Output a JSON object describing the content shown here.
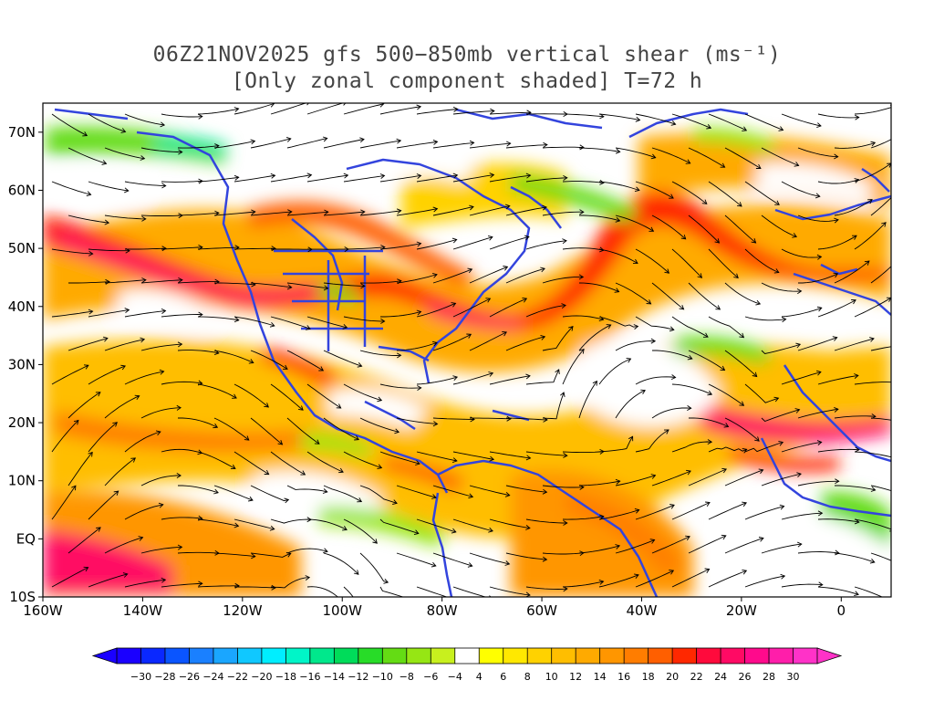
{
  "title": {
    "line1": "06Z21NOV2025 gfs 500−850mb vertical shear (ms⁻¹)",
    "line2": "[Only zonal component shaded] T=72 h"
  },
  "map": {
    "lon_range": [
      -160,
      10
    ],
    "lat_range": [
      -10,
      75
    ],
    "lat_labels": [
      {
        "lat": 70,
        "text": "70N"
      },
      {
        "lat": 60,
        "text": "60N"
      },
      {
        "lat": 50,
        "text": "50N"
      },
      {
        "lat": 40,
        "text": "40N"
      },
      {
        "lat": 30,
        "text": "30N"
      },
      {
        "lat": 20,
        "text": "20N"
      },
      {
        "lat": 10,
        "text": "10N"
      },
      {
        "lat": 0,
        "text": "EQ"
      },
      {
        "lat": -10,
        "text": "10S"
      }
    ],
    "lon_labels": [
      {
        "lon": -160,
        "text": "160W"
      },
      {
        "lon": -140,
        "text": "140W"
      },
      {
        "lon": -120,
        "text": "120W"
      },
      {
        "lon": -100,
        "text": "100W"
      },
      {
        "lon": -80,
        "text": "80W"
      },
      {
        "lon": -60,
        "text": "60W"
      },
      {
        "lon": -40,
        "text": "40W"
      },
      {
        "lon": -20,
        "text": "20W"
      },
      {
        "lon": 0,
        "text": "0"
      }
    ],
    "coastline_color": "#3344dd",
    "streamline_color": "#000000"
  },
  "colorbar": {
    "labels": [
      "−30",
      "−28",
      "−26",
      "−24",
      "−22",
      "−20",
      "−18",
      "−16",
      "−14",
      "−12",
      "−10",
      "−8",
      "−6",
      "−4",
      "4",
      "6",
      "8",
      "10",
      "12",
      "14",
      "16",
      "18",
      "20",
      "22",
      "24",
      "26",
      "28",
      "30"
    ],
    "colors": [
      "#1a00ff",
      "#0a28ff",
      "#0a55ff",
      "#1a80ff",
      "#1aa6ff",
      "#10c8ff",
      "#00eeff",
      "#00f5c8",
      "#00e88c",
      "#00dc5a",
      "#28dc28",
      "#64dc14",
      "#96e614",
      "#c8f01e",
      "#ffffff",
      "#ffff00",
      "#ffe800",
      "#ffd200",
      "#ffbe00",
      "#ffaa00",
      "#ff9600",
      "#ff7d00",
      "#ff5f00",
      "#ff2800",
      "#ff0a3c",
      "#ff0a64",
      "#ff0a8c",
      "#ff1eaa",
      "#ff32c8"
    ]
  }
}
